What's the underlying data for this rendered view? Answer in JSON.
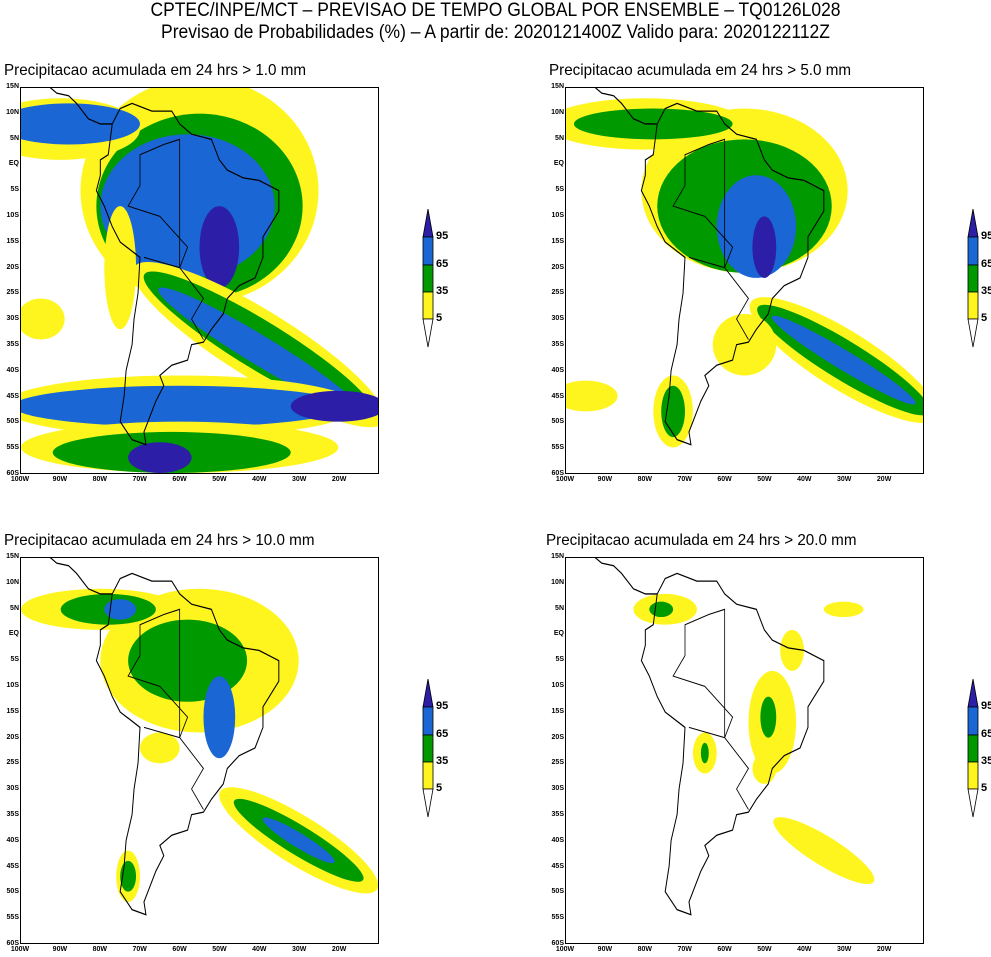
{
  "header": {
    "line1": "CPTEC/INPE/MCT – PREVISAO DE TEMPO GLOBAL POR ENSEMBLE – TQ0126L028",
    "line2": "Previsao de Probabilidades (%) –  A partir de: 2020121400Z  Valido para: 2020122112Z"
  },
  "panels": [
    {
      "title": "Precipitacao acumulada em 24 hrs > 1.0 mm",
      "threshold_mm": 1.0
    },
    {
      "title": "Precipitacao acumulada em 24 hrs > 5.0 mm",
      "threshold_mm": 5.0
    },
    {
      "title": "Precipitacao acumulada em 24 hrs > 10.0 mm",
      "threshold_mm": 10.0
    },
    {
      "title": "Precipitacao acumulada em 24 hrs > 20.0 mm",
      "threshold_mm": 20.0
    }
  ],
  "lat_labels": [
    "15N",
    "10N",
    "5N",
    "EQ",
    "5S",
    "10S",
    "15S",
    "20S",
    "25S",
    "30S",
    "35S",
    "40S",
    "45S",
    "50S",
    "55S",
    "60S"
  ],
  "lon_labels": [
    "100W",
    "90W",
    "80W",
    "70W",
    "60W",
    "50W",
    "40W",
    "30W",
    "20W"
  ],
  "legend": {
    "labels": [
      "95",
      "65",
      "35",
      "5"
    ],
    "colors": [
      "#2c1ea6",
      "#1a66d4",
      "#009a00",
      "#fff51e"
    ]
  }
}
